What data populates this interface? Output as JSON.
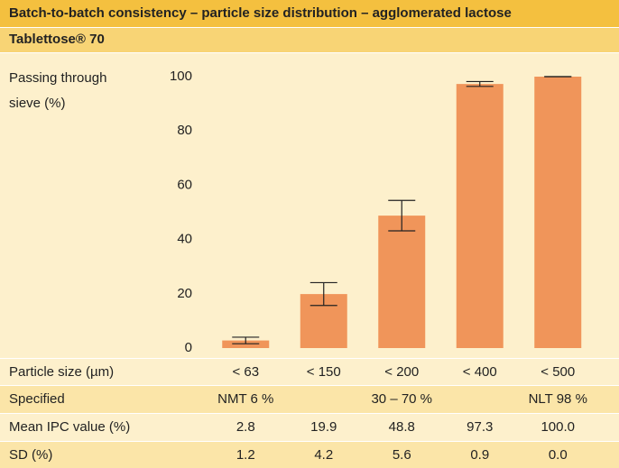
{
  "chart_data": {
    "type": "bar",
    "title": "Batch-to-batch consistency – particle size distribution – agglomerated lactose",
    "subtitle": "Tablettose® 70",
    "y_label_lines": [
      "Passing through",
      "sieve (%)"
    ],
    "x_label": "Particle size (µm)",
    "categories": [
      "< 63",
      "< 150",
      "< 200",
      "< 400",
      "< 500"
    ],
    "values": [
      2.8,
      19.9,
      48.8,
      97.3,
      100.0
    ],
    "value_labels": [
      "2.8",
      "19.9",
      "48.8",
      "97.3",
      "100.0"
    ],
    "errors": [
      1.2,
      4.2,
      5.6,
      0.9,
      0.0
    ],
    "error_labels": [
      "1.2",
      "4.2",
      "5.6",
      "0.9",
      "0.0"
    ],
    "color": "#f0955a",
    "ylim": [
      0,
      100
    ],
    "yticks": [
      0,
      20,
      40,
      60,
      80,
      100
    ],
    "grid": false,
    "specified_label": "Specified",
    "specified": [
      "NMT 6 %",
      null,
      "30 – 70 %",
      null,
      "NLT 98 %"
    ],
    "mean_label": "Mean IPC value (%)",
    "sd_label": "SD (%)"
  }
}
